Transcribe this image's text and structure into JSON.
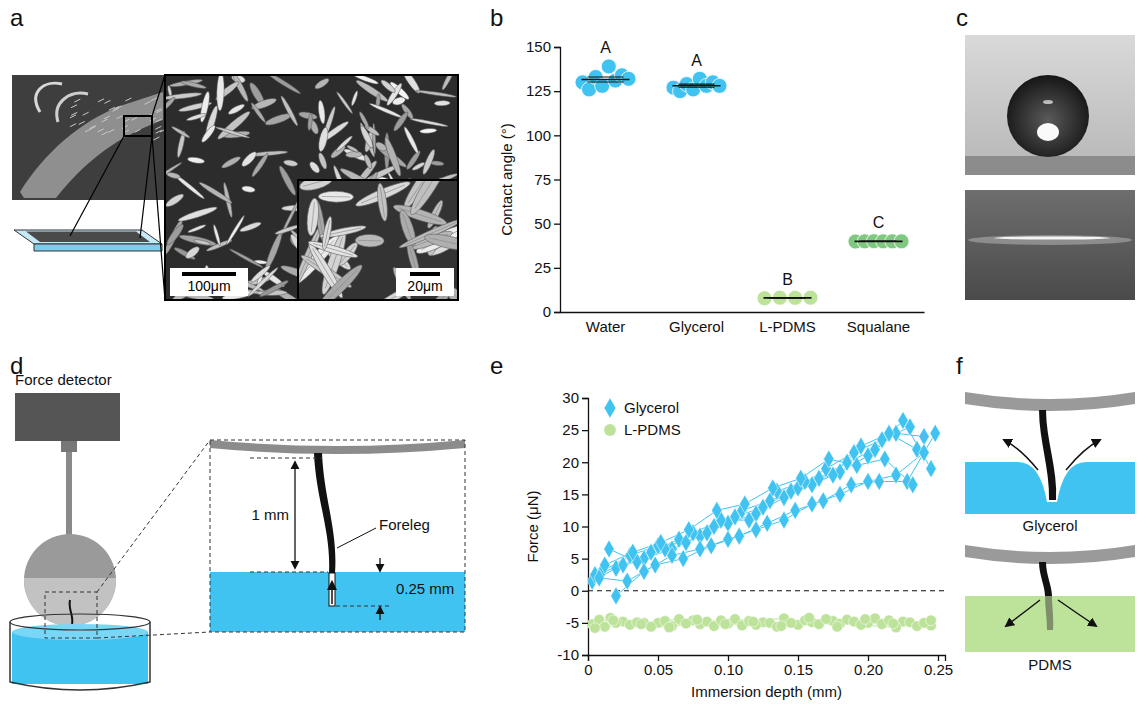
{
  "panel_letters": [
    "a",
    "b",
    "c",
    "d",
    "e",
    "f"
  ],
  "panel_a": {
    "scale_bars": [
      "100μm",
      "20μm"
    ]
  },
  "panel_d": {
    "detector_label": "Force detector",
    "leg_label": "Foreleg",
    "gap_label": "1 mm",
    "depth_label": "0.25 mm"
  },
  "panel_f": {
    "liquid_labels": [
      "Glycerol",
      "PDMS"
    ]
  },
  "chart_data": [
    {
      "type": "strip",
      "ylabel": "Contact angle (°)",
      "categories": [
        "Water",
        "Glycerol",
        "L-PDMS",
        "Squalane"
      ],
      "values": [
        [
          130,
          126,
          133,
          128,
          139,
          131,
          134,
          132
        ],
        [
          127,
          125,
          129,
          126,
          132,
          128,
          130,
          128
        ],
        [
          7.8,
          8.1,
          8.0,
          8.1
        ],
        [
          39.9,
          40.0,
          40.1,
          40.0,
          40.0,
          40.0
        ]
      ],
      "means": [
        131.6,
        128.1,
        8.0,
        40.0
      ],
      "errors": [
        1.4,
        0.9,
        0.2,
        0.1
      ],
      "colors": [
        "#41c3f1",
        "#41c3f1",
        "#bde39b",
        "#7fc87f"
      ],
      "annotations": [
        "A",
        "A",
        "B",
        "C"
      ],
      "ylim": [
        0,
        150
      ],
      "yticks": [
        0,
        25,
        50,
        75,
        100,
        125,
        150
      ]
    },
    {
      "type": "line",
      "xlabel": "Immersion depth (mm)",
      "ylabel": "Force (μN)",
      "xlim": [
        0,
        0.255
      ],
      "xticks": [
        0,
        0.05,
        {
          "value": 0.1,
          "label": "0.10"
        },
        0.15,
        {
          "value": 0.2,
          "label": "0.20"
        },
        0.25
      ],
      "ylim": [
        -10,
        30
      ],
      "yticks": [
        -10,
        -5,
        0,
        5,
        10,
        15,
        20,
        25,
        30
      ],
      "hlines": [
        {
          "value": 0,
          "line_style": "dashed"
        }
      ],
      "legend": "top-left",
      "series": [
        {
          "name": "Glycerol",
          "color": "#41c3f1",
          "marker": "diamond",
          "trials": [
            {
              "x": [
                0.003,
                0.02,
                0.04,
                0.06,
                0.08,
                0.1,
                0.12,
                0.14,
                0.16,
                0.18,
                0.2,
                0.22,
                0.24
              ],
              "values": [
                1.5,
                3.5,
                5.0,
                6.5,
                8.5,
                10.5,
                12.0,
                14.5,
                16.5,
                18.5,
                21.0,
                24.5,
                24.0
              ]
            },
            {
              "x": [
                0.005,
                0.025,
                0.045,
                0.065,
                0.085,
                0.105,
                0.125,
                0.145,
                0.165,
                0.185,
                0.205,
                0.225,
                0.245
              ],
              "values": [
                2.5,
                4.0,
                6.0,
                8.0,
                9.0,
                11.5,
                13.0,
                15.5,
                17.5,
                20.0,
                22.0,
                26.5,
                19.0
              ]
            },
            {
              "x": [
                0.01,
                0.03,
                0.05,
                0.07,
                0.09,
                0.11,
                0.13,
                0.15,
                0.17,
                0.19,
                0.21,
                0.23
              ],
              "values": [
                3.0,
                5.5,
                7.0,
                7.5,
                10.0,
                12.5,
                14.0,
                16.0,
                19.0,
                21.5,
                23.5,
                25.5
              ]
            },
            {
              "x": [
                0.015,
                0.035,
                0.055,
                0.075,
                0.095,
                0.115,
                0.135,
                0.155,
                0.175,
                0.195,
                0.215,
                0.235
              ],
              "values": [
                6.5,
                4.5,
                6.5,
                9.0,
                11.0,
                11.0,
                15.5,
                17.0,
                18.0,
                22.5,
                24.5,
                22.0
              ]
            },
            {
              "x": [
                0.02,
                0.04,
                0.06,
                0.08,
                0.1,
                0.12,
                0.14,
                0.16,
                0.18,
                0.2,
                0.22,
                0.24
              ],
              "values": [
                -0.8,
                3.0,
                5.5,
                6.5,
                8.0,
                9.5,
                11.0,
                13.5,
                15.0,
                17.0,
                18.0,
                21.5
              ]
            },
            {
              "x": [
                0.008,
                0.028,
                0.048,
                0.068,
                0.088,
                0.108,
                0.128,
                0.148,
                0.168,
                0.188,
                0.208,
                0.228,
                0.248
              ],
              "values": [
                2.0,
                1.5,
                4.0,
                5.0,
                7.0,
                8.5,
                10.5,
                12.5,
                14.0,
                16.5,
                17.0,
                17.0,
                24.5
              ]
            },
            {
              "x": [
                0.012,
                0.032,
                0.052,
                0.072,
                0.092,
                0.112,
                0.132,
                0.152,
                0.172,
                0.192,
                0.212,
                0.232
              ],
              "values": [
                4.0,
                6.0,
                7.5,
                9.5,
                12.5,
                13.5,
                16.0,
                17.5,
                20.5,
                19.5,
                20.5,
                16.5
              ]
            }
          ]
        },
        {
          "name": "L-PDMS",
          "color": "#bde39b",
          "marker": "circle",
          "trials": [
            {
              "x": [
                0.003,
                0.025,
                0.05,
                0.075,
                0.1,
                0.125,
                0.15,
                0.175,
                0.2,
                0.225,
                0.245
              ],
              "values": [
                -5.2,
                -4.8,
                -5.0,
                -4.6,
                -5.1,
                -4.9,
                -5.3,
                -4.7,
                -5.0,
                -4.8,
                -5.4
              ]
            },
            {
              "x": [
                0.008,
                0.03,
                0.055,
                0.08,
                0.105,
                0.13,
                0.155,
                0.18,
                0.205,
                0.23
              ],
              "values": [
                -4.5,
                -5.3,
                -4.7,
                -5.2,
                -4.4,
                -5.0,
                -4.6,
                -5.1,
                -4.3,
                -4.9
              ]
            },
            {
              "x": [
                0.012,
                0.035,
                0.06,
                0.085,
                0.11,
                0.135,
                0.16,
                0.185,
                0.21,
                0.235
              ],
              "values": [
                -5.6,
                -4.9,
                -5.5,
                -4.8,
                -5.4,
                -5.6,
                -4.9,
                -4.5,
                -5.2,
                -5.5
              ]
            },
            {
              "x": [
                0.016,
                0.04,
                0.065,
                0.09,
                0.115,
                0.14,
                0.165,
                0.19,
                0.215,
                0.24
              ],
              "values": [
                -4.2,
                -5.0,
                -4.4,
                -5.5,
                -4.7,
                -4.3,
                -5.2,
                -4.8,
                -4.6,
                -5.0
              ]
            },
            {
              "x": [
                0.02,
                0.045,
                0.07,
                0.095,
                0.12,
                0.145,
                0.17,
                0.195,
                0.22,
                0.245
              ],
              "values": [
                -5.0,
                -5.6,
                -5.1,
                -4.6,
                -5.3,
                -5.0,
                -4.4,
                -5.3,
                -5.7,
                -4.6
              ]
            },
            {
              "x": [
                0.005,
                0.018,
                0.038,
                0.058,
                0.078,
                0.098,
                0.118,
                0.138,
                0.158,
                0.178,
                0.198,
                0.218
              ],
              "values": [
                -5.8,
                -4.6,
                -5.2,
                -5.7,
                -4.5,
                -5.2,
                -4.8,
                -5.5,
                -4.2,
                -5.6,
                -4.4,
                -5.1
              ]
            }
          ]
        }
      ]
    }
  ]
}
